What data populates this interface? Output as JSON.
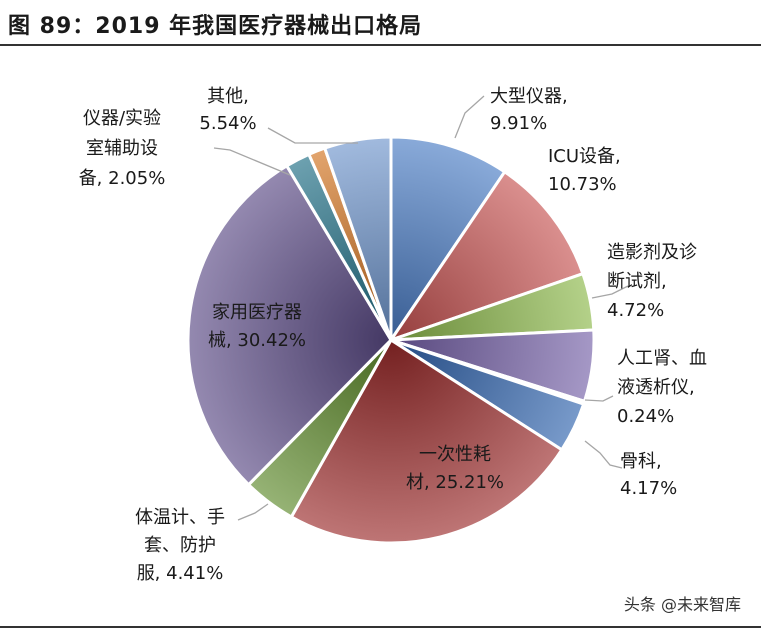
{
  "figure": {
    "title": "图 89：2019 年我国医疗器械出口格局"
  },
  "watermark": "头条 @未来智库",
  "chart_data": {
    "type": "pie",
    "title": "2019 年我国医疗器械出口格局",
    "unit": "%",
    "slices": [
      {
        "key": "large-instruments",
        "lines": [
          "大型仪器,",
          "9.91%"
        ],
        "value": 9.91,
        "color": "#4a7cc4"
      },
      {
        "key": "icu-equipment",
        "lines": [
          "ICU设备,",
          "10.73%"
        ],
        "value": 10.73,
        "color": "#c65351"
      },
      {
        "key": "contrast-diagnostic",
        "lines": [
          "造影剂及诊",
          "断试剂,",
          "4.72%"
        ],
        "value": 4.72,
        "color": "#8cb84a"
      },
      {
        "key": "blood-dialysis",
        "lines": [
          "人工肾、血",
          "液透析仪,",
          "0.24%"
        ],
        "value": 5.94,
        "label_value": 0.24,
        "color": "#7560a8"
      },
      {
        "key": "dialysis-sliver",
        "lines": [],
        "value": 0.24,
        "color": "#5fb0d0"
      },
      {
        "key": "orthopedics",
        "lines": [
          "骨科,",
          "4.17%"
        ],
        "value": 4.17,
        "color": "#2f63ad"
      },
      {
        "key": "consumables",
        "lines": [
          "一次性耗",
          "材, 25.21%"
        ],
        "value": 25.21,
        "color": "#9b2a2a"
      },
      {
        "key": "thermometer-gloves",
        "lines": [
          "体温计、手",
          "套、防护",
          "服, 4.41%"
        ],
        "value": 4.41,
        "color": "#5e8a2b"
      },
      {
        "key": "home-devices",
        "lines": [
          "家用医疗器",
          "械, 30.42%"
        ],
        "value": 30.42,
        "color": "#5a4a85"
      },
      {
        "key": "lab-auxiliary",
        "lines": [
          "仪器/实验",
          "室辅助设",
          "备, 2.05%"
        ],
        "value": 2.05,
        "color": "#1f6f85"
      },
      {
        "key": "other-orange",
        "lines": [],
        "value": 1.4,
        "color": "#d3731f"
      },
      {
        "key": "other",
        "lines": [
          "其他,",
          "5.54%"
        ],
        "value": 5.54,
        "color": "#6f95cc"
      }
    ]
  }
}
